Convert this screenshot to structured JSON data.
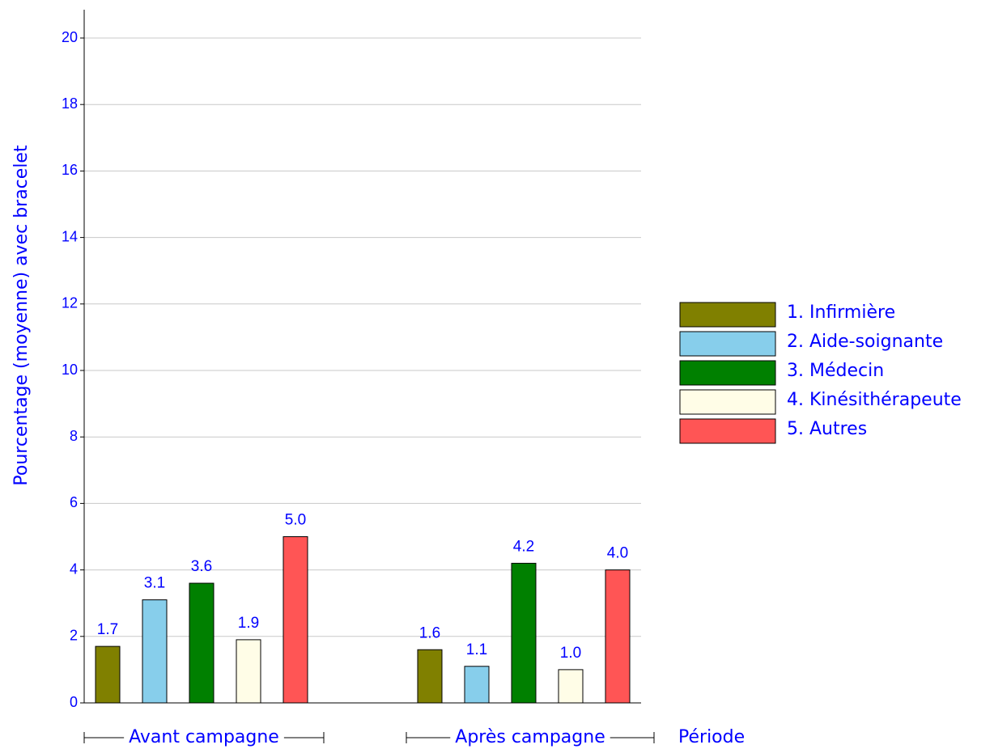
{
  "chart_data": {
    "type": "bar",
    "y_label": "Pourcentage (moyenne) avec bracelet",
    "x_label": "Période",
    "categories": [
      "Avant campagne",
      "Après campagne"
    ],
    "series": [
      {
        "name": "1. Infirmière",
        "color": "#808000",
        "values": [
          1.7,
          1.6
        ],
        "value_labels": [
          "1.7",
          "1.6"
        ]
      },
      {
        "name": "2. Aide-soignante",
        "color": "#87ceeb",
        "values": [
          3.1,
          1.1
        ],
        "value_labels": [
          "3.1",
          "1.1"
        ]
      },
      {
        "name": "3. Médecin",
        "color": "#008000",
        "values": [
          3.6,
          4.2
        ],
        "value_labels": [
          "3.6",
          "4.2"
        ]
      },
      {
        "name": "4. Kinésithérapeute",
        "color": "#fffde7",
        "values": [
          1.9,
          1.0
        ],
        "value_labels": [
          "1.9",
          "1.0"
        ]
      },
      {
        "name": "5. Autres",
        "color": "#ff5555",
        "values": [
          5.0,
          4.0
        ],
        "value_labels": [
          "5.0",
          "4.0"
        ]
      }
    ],
    "ylim": [
      0,
      20
    ],
    "yticks": [
      0,
      2,
      4,
      6,
      8,
      10,
      12,
      14,
      16,
      18,
      20
    ],
    "grid": true,
    "legend": "right"
  }
}
